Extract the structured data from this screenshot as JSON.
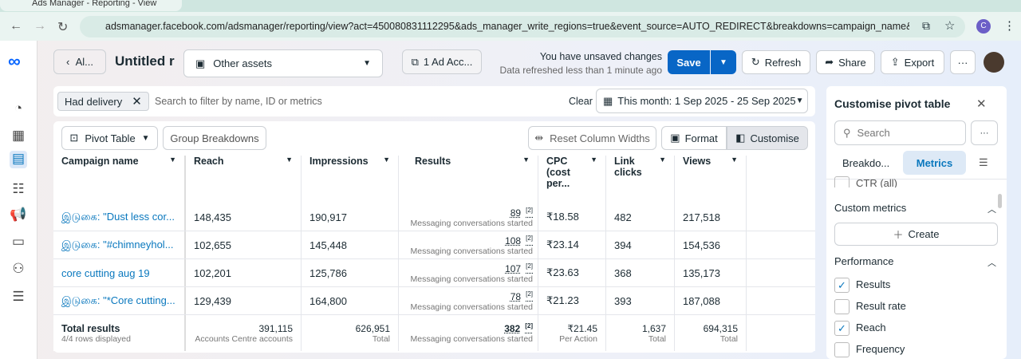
{
  "browser": {
    "tab_title": "Ads Manager - Reporting - View",
    "url": "adsmanager.facebook.com/adsmanager/reporting/view?act=450080831112295&ads_manager_write_regions=true&event_source=AUTO_REDIRECT&breakdowns=campaign_name&locked_dimen...",
    "profile_initial": "C"
  },
  "header": {
    "back_label": "Al...",
    "title": "Untitled r",
    "assets_label": "Other assets",
    "ad_account_label": "1 Ad Acc...",
    "unsaved": "You have unsaved changes",
    "refreshed": "Data refreshed less than 1 minute ago",
    "save": "Save",
    "refresh": "Refresh",
    "share": "Share",
    "export": "Export",
    "more": "···"
  },
  "filter": {
    "chip": "Had delivery",
    "placeholder": "Search to filter by name, ID or metrics",
    "clear": "Clear",
    "date": "This month: 1 Sep 2025 - 25 Sep 2025"
  },
  "toolbar": {
    "pivot": "Pivot Table",
    "group": "Group Breakdowns",
    "reset": "Reset Column Widths",
    "format": "Format",
    "customise": "Customise"
  },
  "table": {
    "headers": [
      "Campaign name",
      "Reach",
      "Impressions",
      "Results",
      "CPC (cost per...",
      "Link clicks",
      "Views"
    ],
    "rows": [
      {
        "name": "இடுகை: \"Dust less cor...",
        "reach": "148,435",
        "impr": "190,917",
        "results": "89",
        "sup": "[2]",
        "rlabel": "Messaging conversations started",
        "cpc": "₹18.58",
        "clicks": "482",
        "views": "217,518"
      },
      {
        "name": "இடுகை: \"#chimneyhol...",
        "reach": "102,655",
        "impr": "145,448",
        "results": "108",
        "sup": "[2]",
        "rlabel": "Messaging conversations started",
        "cpc": "₹23.14",
        "clicks": "394",
        "views": "154,536"
      },
      {
        "name": "core cutting aug 19",
        "reach": "102,201",
        "impr": "125,786",
        "results": "107",
        "sup": "[2]",
        "rlabel": "Messaging conversations started",
        "cpc": "₹23.63",
        "clicks": "368",
        "views": "135,173"
      },
      {
        "name": "இடுகை: \"*Core cutting...",
        "reach": "129,439",
        "impr": "164,800",
        "results": "78",
        "sup": "[2]",
        "rlabel": "Messaging conversations started",
        "cpc": "₹21.23",
        "clicks": "393",
        "views": "187,088"
      }
    ],
    "total": {
      "label": "Total results",
      "sub": "4/4 rows displayed",
      "reach": "391,115",
      "reach_sub": "Accounts Centre accounts",
      "impr": "626,951",
      "impr_sub": "Total",
      "results": "382",
      "sup": "[2]",
      "results_sub": "Messaging conversations started",
      "cpc": "₹21.45",
      "cpc_sub": "Per Action",
      "clicks": "1,637",
      "clicks_sub": "Total",
      "views": "694,315",
      "views_sub": "Total"
    }
  },
  "panel": {
    "title": "Customise pivot table",
    "search": "Search",
    "tab_breakdowns": "Breakdo...",
    "tab_metrics": "Metrics",
    "ctr": "CTR (all)",
    "custom_metrics": "Custom metrics",
    "create": "Create",
    "performance": "Performance",
    "items": [
      {
        "label": "Results",
        "checked": true
      },
      {
        "label": "Result rate",
        "checked": false
      },
      {
        "label": "Reach",
        "checked": true
      },
      {
        "label": "Frequency",
        "checked": false
      }
    ]
  },
  "colors": {
    "accent": "#0a78be",
    "save_bg": "#0866c6"
  }
}
